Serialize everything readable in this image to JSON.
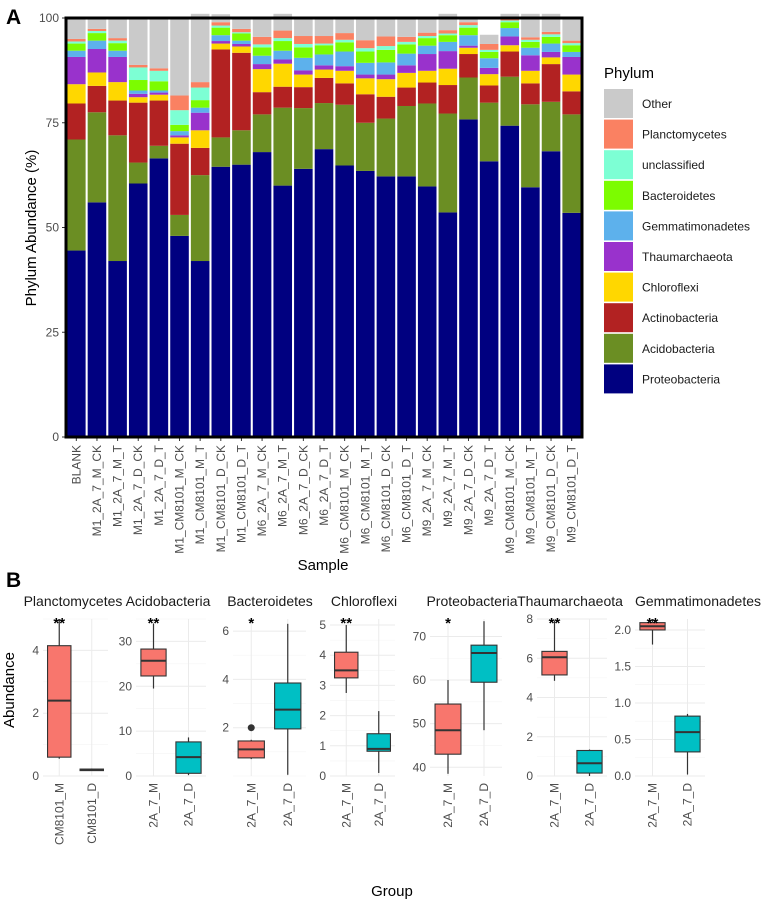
{
  "panel_a": {
    "label": "A",
    "ylabel": "Phylum Abundance (%)",
    "xlabel": "Sample",
    "legend_title": "Phylum",
    "legend": [
      {
        "name": "Other",
        "color": "#CACACA"
      },
      {
        "name": "Planctomycetes",
        "color": "#FA8162"
      },
      {
        "name": "unclassified",
        "color": "#7DFFD4"
      },
      {
        "name": "Bacteroidetes",
        "color": "#7CFC00"
      },
      {
        "name": "Gemmatimonadetes",
        "color": "#5DB1EC"
      },
      {
        "name": "Thaumarchaeota",
        "color": "#9932CC"
      },
      {
        "name": "Chloroflexi",
        "color": "#FFD700"
      },
      {
        "name": "Actinobacteria",
        "color": "#B22222"
      },
      {
        "name": "Acidobacteria",
        "color": "#6B8E23"
      },
      {
        "name": "Proteobacteria",
        "color": "#000080"
      }
    ]
  },
  "panel_b": {
    "label": "B",
    "ylabel": "Abundance",
    "xlabel": "Group",
    "colors": {
      "M": "#F8766D",
      "D": "#00BFC4"
    }
  },
  "chart_data": [
    {
      "type": "bar",
      "stacked": true,
      "title": "",
      "xlabel": "Sample",
      "ylabel": "Phylum Abundance (%)",
      "ylim": [
        0,
        100
      ],
      "yticks": [
        0,
        25,
        50,
        75,
        100
      ],
      "categories": [
        "BLANK",
        "M1_2A_7_M_CK",
        "M1_2A_7_M_T",
        "M1_2A_7_D_CK",
        "M1_2A_7_D_T",
        "M1_CM8101_M_CK",
        "M1_CM8101_M_T",
        "M1_CM8101_D_CK",
        "M1_CM8101_D_T",
        "M6_2A_7_M_CK",
        "M6_2A_7_M_T",
        "M6_2A_7_D_CK",
        "M6_2A_7_D_T",
        "M6_CM8101_M_CK",
        "M6_CM8101_M_T",
        "M6_CM8101_D_CK",
        "M6_CM8101_D_T",
        "M9_2A_7_M_CK",
        "M9_2A_7_M_T",
        "M9_2A_7_D_CK",
        "M9_2A_7_D_T",
        "M9_CM8101_M_CK",
        "M9_CM8101_M_T",
        "M9_CM8101_D_CK",
        "M9_CM8101_D_T"
      ],
      "series": [
        {
          "name": "Proteobacteria",
          "values": [
            44.5,
            56,
            42,
            60.5,
            66.5,
            48,
            42,
            64.5,
            65,
            68,
            60,
            64,
            68.7,
            64.8,
            63.5,
            62.2,
            62.2,
            59.8,
            53.6,
            75.8,
            65.8,
            74.3,
            59.6,
            68.2,
            53.5
          ]
        },
        {
          "name": "Acidobacteria",
          "values": [
            26.5,
            21.5,
            30,
            5,
            3,
            5,
            20.5,
            7,
            8.2,
            9,
            18.6,
            14.5,
            11,
            14.5,
            11.5,
            13.8,
            16.8,
            19.8,
            23.6,
            10,
            14,
            11.7,
            19.8,
            11.8,
            23.5
          ]
        },
        {
          "name": "Actinobacteria",
          "values": [
            8.6,
            6.3,
            8.3,
            14.3,
            10.8,
            17,
            6.5,
            21,
            18.5,
            5.3,
            5,
            5,
            6,
            5.1,
            6.8,
            5.2,
            4.4,
            5,
            6.8,
            5.6,
            4.1,
            6,
            5,
            9,
            5.5
          ]
        },
        {
          "name": "Chloroflexi",
          "values": [
            4.6,
            3.2,
            4.4,
            1.3,
            1.4,
            1.5,
            4.2,
            1.4,
            1.5,
            5.5,
            5.5,
            3,
            2,
            3,
            3.8,
            4.2,
            3.5,
            2.8,
            3.9,
            1.5,
            2.7,
            1.5,
            3,
            1.6,
            4
          ]
        },
        {
          "name": "Thaumarchaeota",
          "values": [
            6.5,
            5.6,
            6,
            0.8,
            0.5,
            0.5,
            4.2,
            0.6,
            0.6,
            1.2,
            1,
            1,
            1,
            1.1,
            0.9,
            1.1,
            1.8,
            4,
            4.2,
            0.5,
            1.5,
            2.1,
            3.7,
            1.3,
            4.2
          ]
        },
        {
          "name": "Gemmatimonadetes",
          "values": [
            1.5,
            2,
            1.5,
            0.8,
            0.5,
            1,
            1.2,
            1.4,
            0.8,
            2,
            2.1,
            3,
            2.6,
            3.5,
            2.8,
            2.9,
            2.8,
            2,
            2.2,
            2.5,
            2.3,
            2,
            1.8,
            2,
            1.2
          ]
        },
        {
          "name": "Bacteroidetes",
          "values": [
            1.7,
            1.8,
            1.8,
            2.5,
            2.2,
            1.5,
            1.8,
            1.8,
            1.7,
            2,
            2.3,
            2.5,
            2.2,
            2.2,
            2.7,
            3,
            2.2,
            1.8,
            1.6,
            1.8,
            1.5,
            1.4,
            1.4,
            1.6,
            1.6
          ]
        },
        {
          "name": "unclassified",
          "values": [
            0.5,
            0.5,
            0.6,
            3,
            2.5,
            3.5,
            3,
            0.5,
            0.3,
            0.7,
            0.7,
            0.8,
            0.4,
            0.6,
            0.8,
            0.9,
            0.6,
            0.5,
            0.4,
            0.6,
            0.5,
            0.4,
            0.5,
            0.6,
            0.5
          ]
        },
        {
          "name": "Planctomycetes",
          "values": [
            0.6,
            0.5,
            0.6,
            0.6,
            0.6,
            3.5,
            1.3,
            0.8,
            0.8,
            1.8,
            1.8,
            1.9,
            1.8,
            1.6,
            1.9,
            2.3,
            1.2,
            0.8,
            0.8,
            0.7,
            1.4,
            0.7,
            0.6,
            0.6,
            0.6
          ]
        },
        {
          "name": "Other",
          "values": [
            5,
            2.6,
            4.8,
            11.2,
            12,
            18.5,
            16.3,
            1.9,
            2.6,
            4.5,
            4,
            4.3,
            4.3,
            3.6,
            5.3,
            4.4,
            4.5,
            3.5,
            3.9,
            1,
            2.2,
            0.9,
            5.6,
            4.3,
            5.4
          ]
        }
      ]
    },
    {
      "type": "box",
      "facets": [
        {
          "title": "Planctomycetes",
          "sig": "**",
          "groups": [
            "CM8101_M",
            "CM8101_D"
          ],
          "ylim": [
            0,
            5
          ],
          "yticks": [
            0,
            2,
            4
          ],
          "boxes": [
            {
              "min": 0.55,
              "q1": 0.6,
              "median": 2.4,
              "q3": 4.15,
              "max": 5.0,
              "outliers": []
            },
            {
              "min": 0.17,
              "q1": 0.18,
              "median": 0.2,
              "q3": 0.22,
              "max": 0.24,
              "outliers": []
            }
          ]
        },
        {
          "title": "Acidobacteria",
          "sig": "**",
          "groups": [
            "2A_7_M",
            "2A_7_D"
          ],
          "ylim": [
            0,
            35
          ],
          "yticks": [
            0,
            10,
            20,
            30
          ],
          "boxes": [
            {
              "min": 19.5,
              "q1": 22.3,
              "median": 25.7,
              "q3": 28.3,
              "max": 34.0,
              "outliers": []
            },
            {
              "min": 0.2,
              "q1": 0.6,
              "median": 4.2,
              "q3": 7.6,
              "max": 8.6,
              "outliers": []
            }
          ]
        },
        {
          "title": "Bacteroidetes",
          "sig": "*",
          "groups": [
            "2A_7_M",
            "2A_7_D"
          ],
          "ylim": [
            0,
            6.5
          ],
          "yticks": [
            2,
            4,
            6
          ],
          "boxes": [
            {
              "min": 0.7,
              "q1": 0.75,
              "median": 1.1,
              "q3": 1.45,
              "max": 1.5,
              "outliers": [
                2.0
              ]
            },
            {
              "min": 0.05,
              "q1": 1.95,
              "median": 2.75,
              "q3": 3.85,
              "max": 6.3,
              "outliers": []
            }
          ]
        },
        {
          "title": "Chloroflexi",
          "sig": "**",
          "groups": [
            "2A_7_M",
            "2A_7_D"
          ],
          "ylim": [
            0,
            5.2
          ],
          "yticks": [
            0,
            1,
            2,
            3,
            4,
            5
          ],
          "boxes": [
            {
              "min": 2.75,
              "q1": 3.25,
              "median": 3.5,
              "q3": 4.1,
              "max": 5.0,
              "outliers": []
            },
            {
              "min": 0.1,
              "q1": 0.82,
              "median": 0.9,
              "q3": 1.4,
              "max": 2.15,
              "outliers": []
            }
          ]
        },
        {
          "title": "Proteobacteria",
          "sig": "*",
          "groups": [
            "2A_7_M",
            "2A_7_D"
          ],
          "ylim": [
            38,
            74
          ],
          "yticks": [
            40,
            50,
            60,
            70
          ],
          "boxes": [
            {
              "min": 38.5,
              "q1": 43.0,
              "median": 48.5,
              "q3": 54.5,
              "max": 60.0,
              "outliers": []
            },
            {
              "min": 48.5,
              "q1": 59.5,
              "median": 66.2,
              "q3": 68.0,
              "max": 73.5,
              "outliers": []
            }
          ]
        },
        {
          "title": "Thaumarchaeota",
          "sig": "**",
          "groups": [
            "2A_7_M",
            "2A_7_D"
          ],
          "ylim": [
            0,
            8
          ],
          "yticks": [
            0,
            2,
            4,
            6,
            8
          ],
          "boxes": [
            {
              "min": 4.85,
              "q1": 5.15,
              "median": 6.05,
              "q3": 6.35,
              "max": 7.9,
              "outliers": []
            },
            {
              "min": 0.0,
              "q1": 0.15,
              "median": 0.65,
              "q3": 1.3,
              "max": 1.35,
              "outliers": []
            }
          ]
        },
        {
          "title": "Gemmatimonadetes",
          "sig": "**",
          "groups": [
            "2A_7_M",
            "2A_7_D"
          ],
          "ylim": [
            0,
            2.15
          ],
          "yticks": [
            0.0,
            0.5,
            1.0,
            1.5,
            2.0
          ],
          "boxes": [
            {
              "min": 1.8,
              "q1": 2.0,
              "median": 2.05,
              "q3": 2.1,
              "max": 2.15,
              "outliers": []
            },
            {
              "min": 0.02,
              "q1": 0.33,
              "median": 0.6,
              "q3": 0.82,
              "max": 0.85,
              "outliers": []
            }
          ]
        }
      ]
    }
  ]
}
